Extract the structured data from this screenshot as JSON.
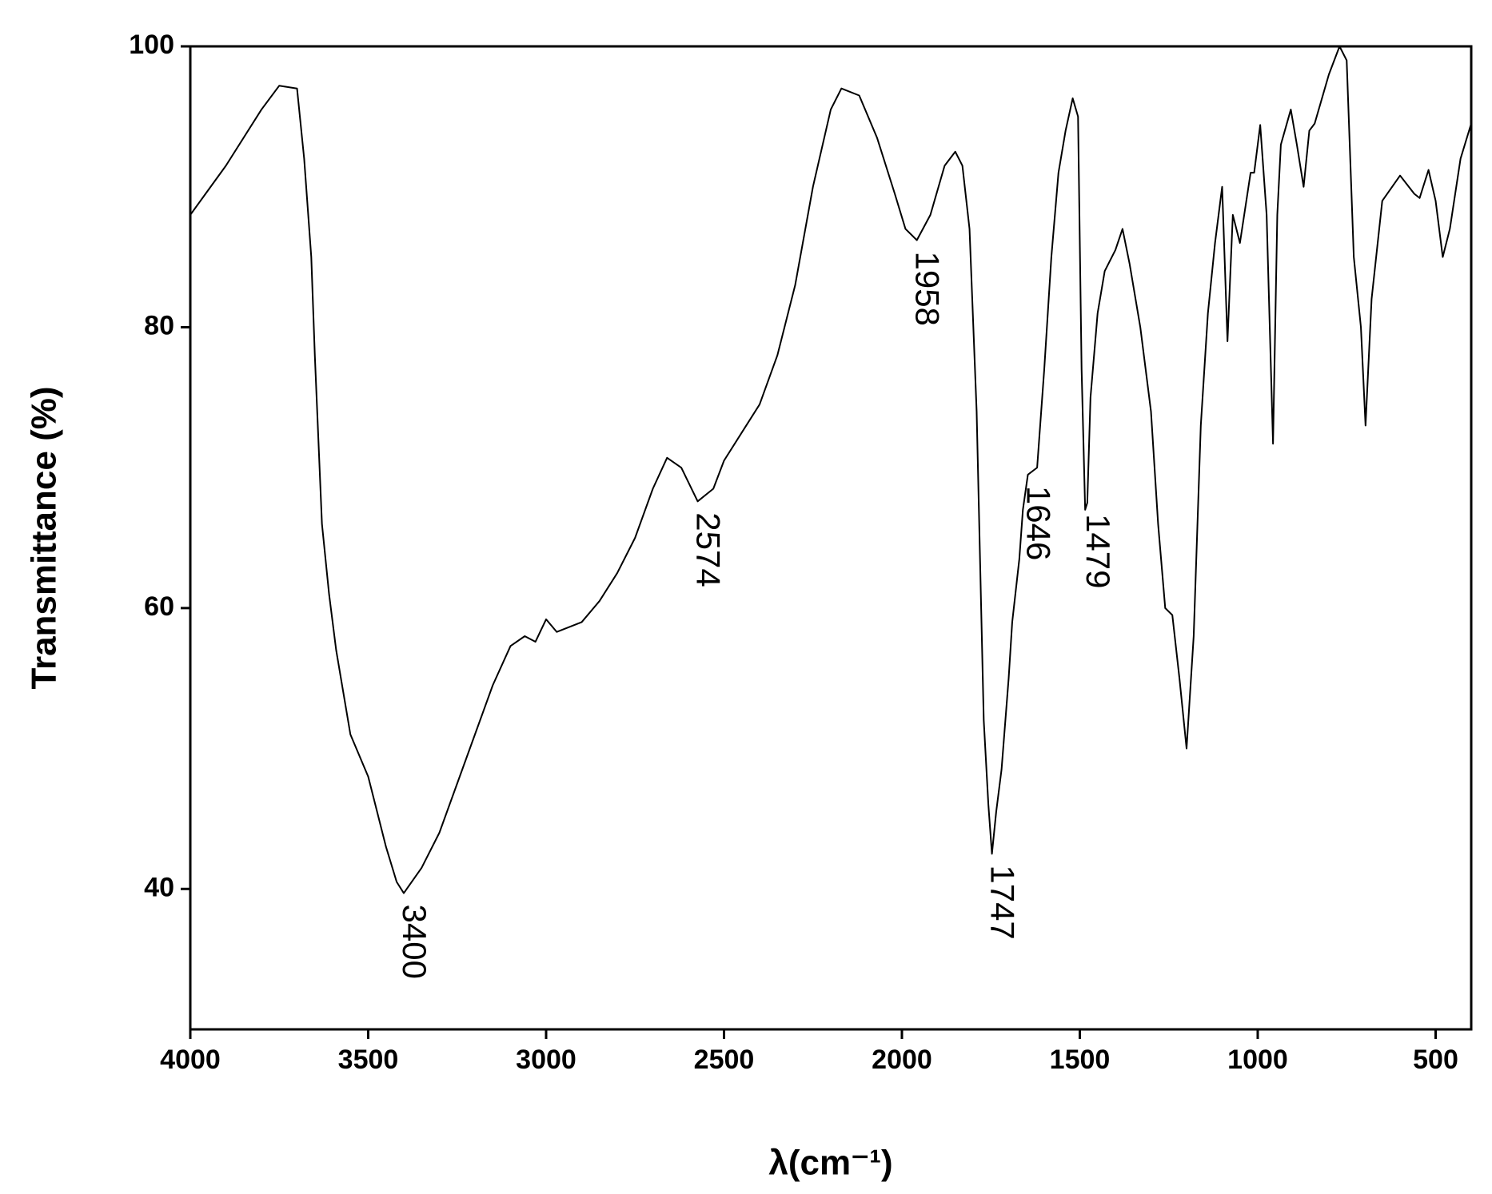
{
  "chart_data": {
    "type": "line",
    "x_label": "λ(cm⁻¹)",
    "y_label": "Transmittance  (%)",
    "xlim": [
      4000,
      400
    ],
    "ylim": [
      30,
      100
    ],
    "xticks": [
      4000,
      3500,
      3000,
      2500,
      2000,
      1500,
      1000,
      500
    ],
    "yticks": [
      40,
      60,
      80,
      100
    ],
    "series": [
      {
        "color": "#000000",
        "x": [
          4000,
          3900,
          3800,
          3750,
          3700,
          3680,
          3660,
          3650,
          3630,
          3610,
          3590,
          3570,
          3550,
          3500,
          3450,
          3420,
          3400,
          3350,
          3300,
          3250,
          3200,
          3150,
          3100,
          3060,
          3030,
          3000,
          2970,
          2900,
          2850,
          2800,
          2750,
          2700,
          2660,
          2620,
          2574,
          2530,
          2500,
          2450,
          2400,
          2350,
          2300,
          2250,
          2200,
          2170,
          2120,
          2070,
          2020,
          1990,
          1958,
          1920,
          1880,
          1850,
          1830,
          1810,
          1790,
          1780,
          1770,
          1757,
          1747,
          1735,
          1720,
          1700,
          1690,
          1670,
          1660,
          1646,
          1620,
          1600,
          1580,
          1560,
          1540,
          1520,
          1505,
          1495,
          1485,
          1479,
          1470,
          1450,
          1430,
          1400,
          1380,
          1360,
          1330,
          1300,
          1280,
          1260,
          1240,
          1220,
          1200,
          1180,
          1160,
          1140,
          1120,
          1100,
          1085,
          1070,
          1050,
          1020,
          1010,
          993,
          975,
          957,
          945,
          935,
          907,
          890,
          871,
          855,
          840,
          800,
          770,
          750,
          730,
          710,
          697,
          680,
          650,
          600,
          560,
          545,
          520,
          500,
          480,
          460,
          430,
          400
        ],
        "values": [
          88,
          91.5,
          95.5,
          97.2,
          97,
          92,
          85,
          78,
          66,
          61,
          57,
          54,
          51,
          48,
          43,
          40.5,
          39.7,
          41.5,
          44,
          47.5,
          51,
          54.5,
          57.3,
          58,
          57.6,
          59.2,
          58.3,
          59,
          60.5,
          62.5,
          65,
          68.5,
          70.7,
          70,
          67.6,
          68.5,
          70.5,
          72.5,
          74.5,
          78,
          83,
          90,
          95.5,
          97,
          96.5,
          93.5,
          89.5,
          87,
          86.2,
          88,
          91.5,
          92.5,
          91.5,
          87,
          74,
          63,
          52,
          46,
          42.5,
          45.5,
          48.5,
          55,
          59,
          63.5,
          67,
          69.5,
          70,
          77,
          85,
          91,
          94,
          96.3,
          95,
          77,
          67,
          67.5,
          75,
          81,
          84,
          85.5,
          87,
          84.5,
          80,
          74,
          66,
          60,
          59.5,
          55,
          50,
          58,
          73,
          81,
          86,
          90,
          79,
          88,
          86,
          91,
          91,
          94.4,
          88,
          71.7,
          88,
          93,
          95.5,
          93,
          90,
          94,
          94.5,
          98,
          100,
          99,
          85,
          80,
          73,
          82,
          89,
          90.8,
          89.5,
          89.2,
          91.2,
          89,
          85,
          87,
          92,
          94.5
        ]
      }
    ],
    "annotations": [
      {
        "label": "3400",
        "x": 3400,
        "y": 39.7
      },
      {
        "label": "2574",
        "x": 2574,
        "y": 67.6
      },
      {
        "label": "1958",
        "x": 1958,
        "y": 86.2
      },
      {
        "label": "1747",
        "x": 1747,
        "y": 42.5
      },
      {
        "label": "1646",
        "x": 1646,
        "y": 69.5
      },
      {
        "label": "1479",
        "x": 1479,
        "y": 67.5
      }
    ]
  }
}
